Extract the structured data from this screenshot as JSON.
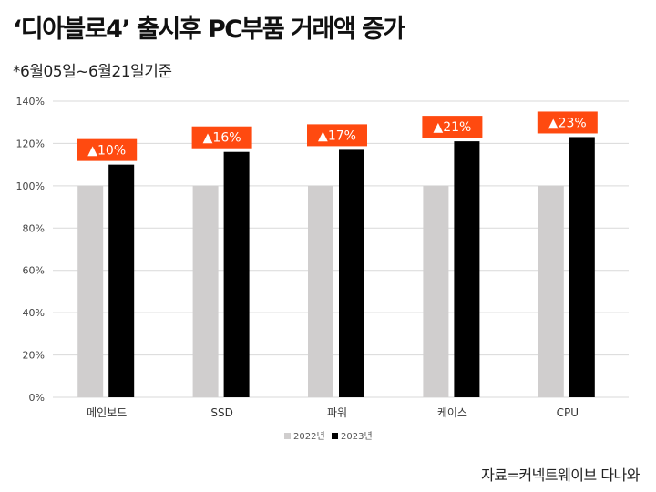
{
  "header": {
    "title": "‘디아블로4’ 출시후 PC부품 거래액 증가",
    "subtitle": "*6월05일~6월21일기준"
  },
  "footer": {
    "source": "자료=커넥트웨이브 다나와"
  },
  "colors": {
    "series_2022": "#d0cece",
    "series_2023": "#000000",
    "badge": "#ff4a10",
    "grid": "#d9d9d9"
  },
  "chart_data": {
    "type": "bar",
    "categories": [
      "메인보드",
      "SSD",
      "파워",
      "케이스",
      "CPU"
    ],
    "series": [
      {
        "name": "2022년",
        "values": [
          100,
          100,
          100,
          100,
          100
        ]
      },
      {
        "name": "2023년",
        "values": [
          110,
          116,
          117,
          121,
          123
        ]
      }
    ],
    "annotations": [
      "▲10%",
      "▲16%",
      "▲17%",
      "▲21%",
      "▲23%"
    ],
    "yticks": [
      "0%",
      "20%",
      "40%",
      "60%",
      "80%",
      "100%",
      "120%",
      "140%"
    ],
    "ylim": [
      0,
      140
    ],
    "legend_position": "bottom-center"
  }
}
